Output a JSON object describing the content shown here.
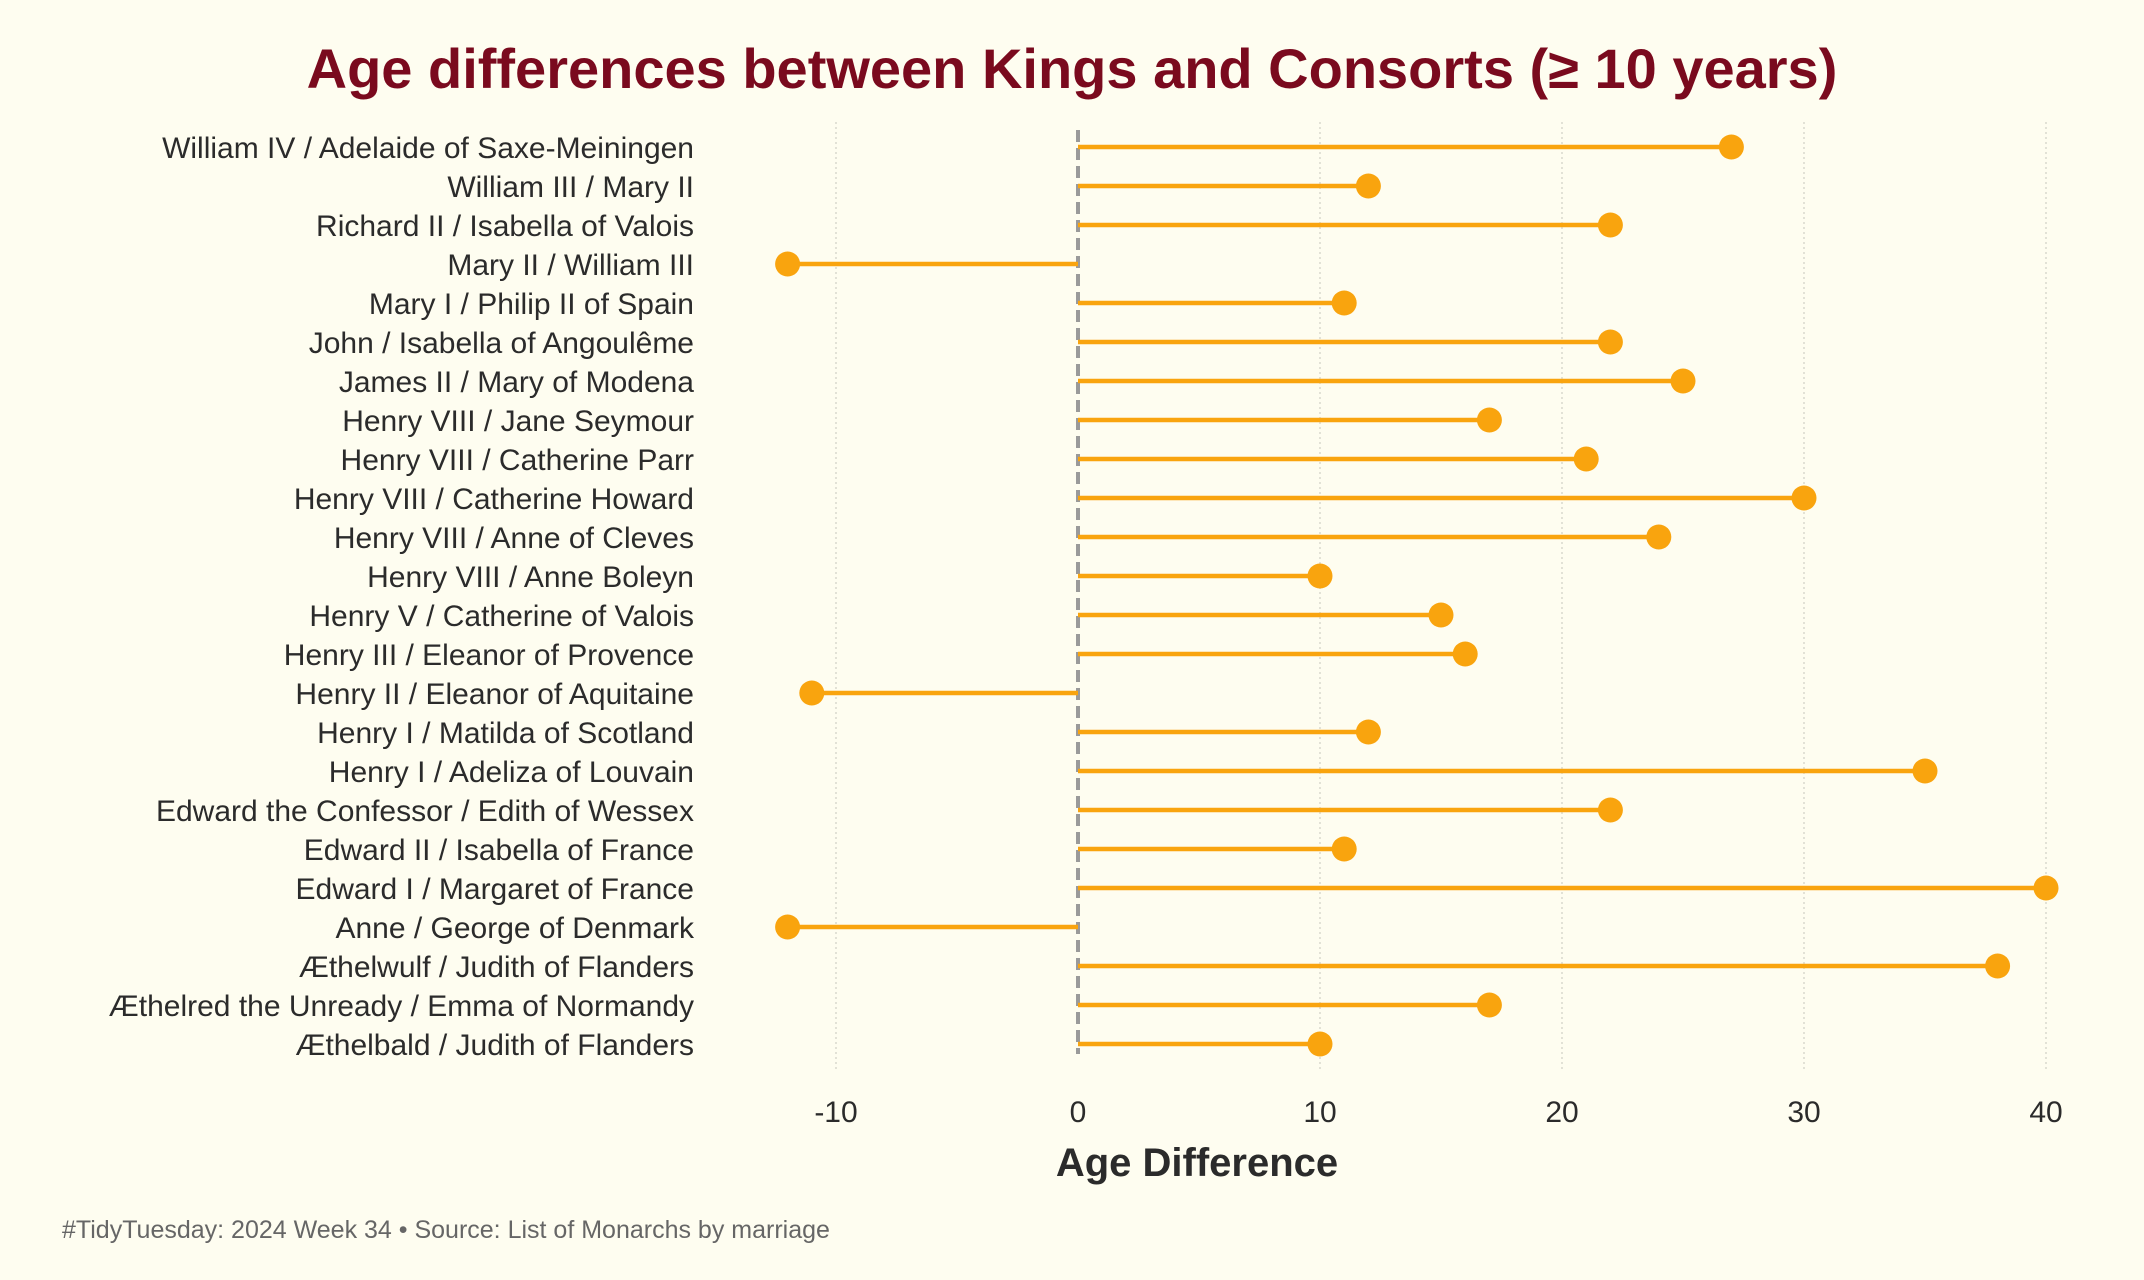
{
  "chart_data": {
    "type": "lollipop",
    "title": "Age differences between Kings and Consorts (≥ 10 years)",
    "xlabel": "Age Difference",
    "ylabel": "",
    "caption": "#TidyTuesday: 2024 Week 34 • Source: List of Monarchs by marriage",
    "xlim": [
      -13,
      41
    ],
    "xticks": [
      -10,
      0,
      10,
      20,
      30,
      40
    ],
    "xtick_labels": [
      "-10",
      "0",
      "10",
      "20",
      "30",
      "40"
    ],
    "baseline": 0,
    "grid": "vertical-dotted",
    "categories": [
      "William IV / Adelaide of Saxe-Meiningen",
      "William III / Mary II",
      "Richard II / Isabella of Valois",
      "Mary II / William III",
      "Mary I / Philip II of Spain",
      "John / Isabella of Angoulême",
      "James II / Mary of Modena",
      "Henry VIII / Jane Seymour",
      "Henry VIII / Catherine Parr",
      "Henry VIII / Catherine Howard",
      "Henry VIII / Anne of Cleves",
      "Henry VIII / Anne Boleyn",
      "Henry V / Catherine of Valois",
      "Henry III / Eleanor of Provence",
      "Henry II / Eleanor of Aquitaine",
      "Henry I / Matilda of Scotland",
      "Henry I / Adeliza of Louvain",
      "Edward the Confessor / Edith of Wessex",
      "Edward II / Isabella of France",
      "Edward I / Margaret of France",
      "Anne / George of Denmark",
      "Æthelwulf / Judith of Flanders",
      "Æthelred the Unready / Emma of Normandy",
      "Æthelbald / Judith of Flanders"
    ],
    "values": [
      27,
      12,
      22,
      -12,
      11,
      22,
      25,
      17,
      21,
      30,
      24,
      10,
      15,
      16,
      -11,
      12,
      35,
      22,
      11,
      40,
      -12,
      38,
      17,
      10
    ]
  },
  "colors": {
    "background": "#FEFDF0",
    "title": "#7A0A1E",
    "point": "#F9A40E",
    "segment": "#F9A40E",
    "baseline": "#9A9A9A",
    "grid": "#CFCFC4",
    "text": "#2B2B2B",
    "caption": "#666666"
  }
}
